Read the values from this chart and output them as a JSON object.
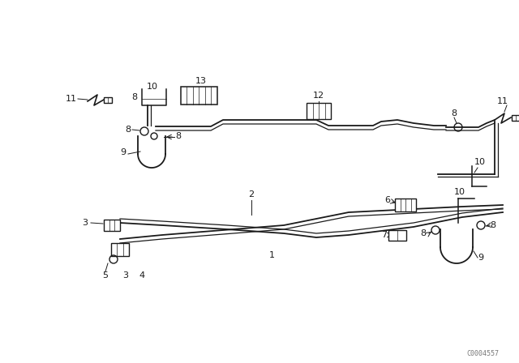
{
  "bg_color": "#ffffff",
  "line_color": "#1a1a1a",
  "watermark": "C0004557",
  "fig_width": 6.4,
  "fig_height": 4.48,
  "dpi": 100
}
